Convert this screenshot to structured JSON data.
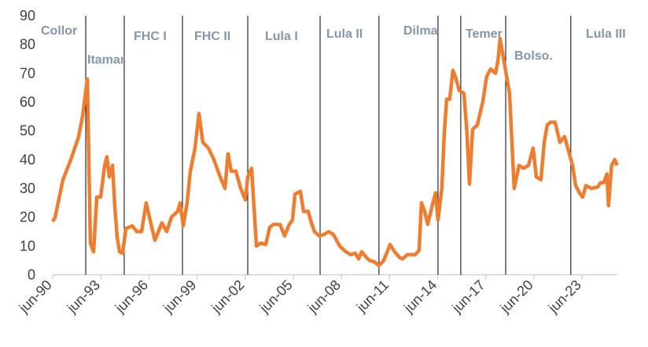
{
  "chart_data": {
    "type": "line",
    "x": [
      1990.5,
      1990.65,
      1991.14,
      1991.63,
      1992.12,
      1992.36,
      1992.66,
      1992.85,
      1993.05,
      1993.25,
      1993.49,
      1993.74,
      1993.88,
      1994.03,
      1994.23,
      1994.37,
      1994.52,
      1994.67,
      1994.86,
      1995.06,
      1995.45,
      1995.75,
      1996.04,
      1996.33,
      1996.53,
      1996.87,
      1997.31,
      1997.61,
      1997.9,
      1998.29,
      1998.44,
      1998.64,
      1998.88,
      1999.08,
      1999.37,
      1999.62,
      1999.86,
      2000.21,
      2000.55,
      2000.94,
      2001.24,
      2001.43,
      2001.63,
      2001.92,
      2002.22,
      2002.51,
      2002.66,
      2002.9,
      2003.2,
      2003.49,
      2003.78,
      2004.03,
      2004.27,
      2004.67,
      2004.96,
      2005.25,
      2005.45,
      2005.6,
      2005.94,
      2006.14,
      2006.43,
      2006.63,
      2006.82,
      2007.12,
      2007.41,
      2007.71,
      2008.0,
      2008.39,
      2008.78,
      2009.08,
      2009.37,
      2009.57,
      2009.76,
      2010.06,
      2010.25,
      2010.55,
      2010.84,
      2011.14,
      2011.53,
      2011.82,
      2012.12,
      2012.31,
      2012.61,
      2013.1,
      2013.34,
      2013.49,
      2013.69,
      2013.88,
      2014.18,
      2014.37,
      2014.52,
      2014.76,
      2014.91,
      2015.06,
      2015.25,
      2015.45,
      2015.65,
      2015.84,
      2016.14,
      2016.33,
      2016.48,
      2016.68,
      2016.97,
      2017.31,
      2017.56,
      2017.8,
      2018.1,
      2018.25,
      2018.39,
      2018.64,
      2018.98,
      2019.27,
      2019.57,
      2019.86,
      2020.16,
      2020.45,
      2020.65,
      2020.94,
      2021.14,
      2021.33,
      2021.53,
      2021.82,
      2022.12,
      2022.41,
      2022.71,
      2022.91,
      2023.1,
      2023.39,
      2023.54,
      2023.74,
      2024.08,
      2024.47,
      2024.66,
      2024.85,
      2025.05,
      2025.15,
      2025.34,
      2025.54,
      2025.69
    ],
    "series": [
      {
        "color": "#ed7d31",
        "values": [
          18.5,
          20,
          33,
          40,
          48,
          55,
          68,
          11,
          8,
          27,
          27,
          38,
          41,
          34,
          38,
          24,
          13,
          8,
          7.5,
          16,
          17,
          15,
          15,
          25,
          20,
          12,
          18,
          15,
          20,
          22,
          25,
          17,
          25,
          36,
          44,
          56,
          46,
          44,
          40,
          34,
          30,
          42,
          36,
          36,
          30,
          26,
          34,
          37,
          10,
          11,
          10.5,
          16.5,
          17.5,
          17.5,
          13.5,
          17.5,
          19,
          28,
          29,
          22,
          22,
          18,
          15,
          13.5,
          14,
          15,
          14,
          10,
          8,
          7,
          7.5,
          5.5,
          8,
          6,
          5,
          4.5,
          3.2,
          5,
          10.5,
          8,
          6,
          5.5,
          7,
          7,
          8.5,
          25,
          22,
          17.5,
          24.5,
          28.5,
          19,
          30,
          49,
          61,
          61,
          71,
          68,
          64,
          63,
          49,
          31.5,
          50.5,
          52,
          60,
          69,
          71.5,
          70,
          74,
          82,
          74,
          63,
          30,
          38,
          37,
          38,
          44,
          34,
          33,
          46,
          52,
          53,
          53,
          46,
          48,
          42,
          38,
          31,
          28,
          27,
          31,
          30,
          30.5,
          32,
          32,
          35,
          24,
          38,
          40,
          38
        ]
      }
    ],
    "xlim": [
      1990.5,
      2025.7
    ],
    "xticks": [
      {
        "value": 1990.5,
        "label": "jun-90"
      },
      {
        "value": 1993.5,
        "label": "jun-93"
      },
      {
        "value": 1996.5,
        "label": "jun-96"
      },
      {
        "value": 1999.5,
        "label": "jun-99"
      },
      {
        "value": 2002.5,
        "label": "jun-02"
      },
      {
        "value": 2005.5,
        "label": "jun-05"
      },
      {
        "value": 2008.5,
        "label": "jun-08"
      },
      {
        "value": 2011.5,
        "label": "jun-11"
      },
      {
        "value": 2014.5,
        "label": "jun-14"
      },
      {
        "value": 2017.5,
        "label": "jun-17"
      },
      {
        "value": 2020.5,
        "label": "jun-20"
      },
      {
        "value": 2023.5,
        "label": "jun-23"
      }
    ],
    "ylim": [
      0,
      90
    ],
    "yticks": [
      0,
      10,
      20,
      30,
      40,
      50,
      60,
      70,
      80,
      90
    ],
    "boundaries": [
      1992.56,
      1994.96,
      1998.59,
      2002.66,
      2007.17,
      2010.84,
      2014.52,
      2015.94,
      2018.74,
      2022.8
    ],
    "period_labels": [
      "Collor",
      "Itamar",
      "FHC I",
      "FHC II",
      "Lula I",
      "Lula II",
      "Dilma",
      "Temer",
      "Bolso.",
      "Lula III"
    ]
  }
}
